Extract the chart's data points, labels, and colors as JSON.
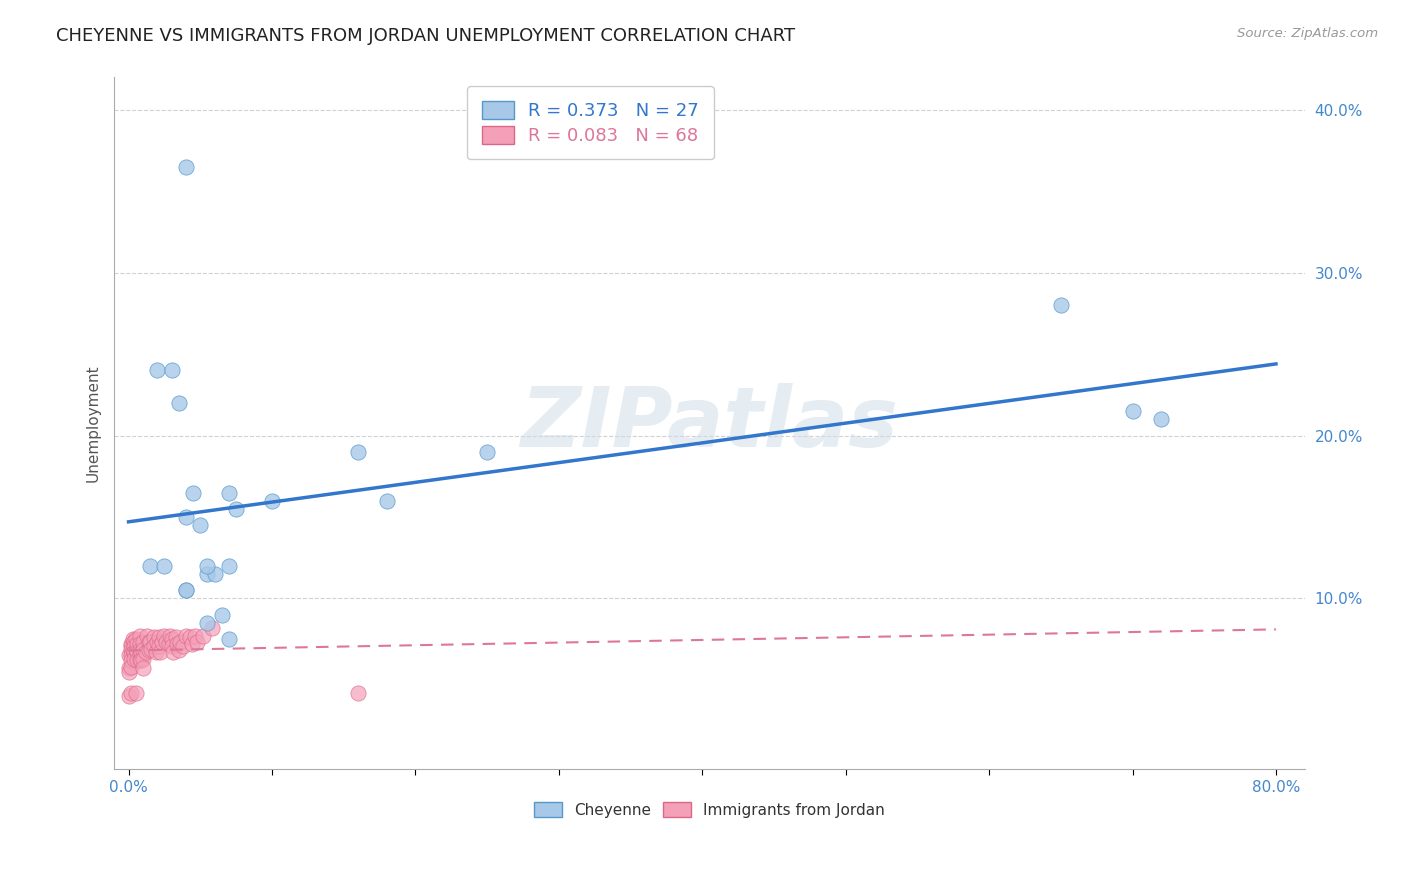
{
  "title": "CHEYENNE VS IMMIGRANTS FROM JORDAN UNEMPLOYMENT CORRELATION CHART",
  "source": "Source: ZipAtlas.com",
  "ylabel": "Unemployment",
  "xlim": [
    -0.01,
    0.82
  ],
  "ylim": [
    -0.005,
    0.42
  ],
  "xticks": [
    0.0,
    0.1,
    0.2,
    0.3,
    0.4,
    0.5,
    0.6,
    0.7,
    0.8
  ],
  "xticklabels": [
    "0.0%",
    "",
    "",
    "",
    "",
    "",
    "",
    "",
    "80.0%"
  ],
  "yticks": [
    0.1,
    0.2,
    0.3,
    0.4
  ],
  "yticklabels": [
    "10.0%",
    "20.0%",
    "30.0%",
    "40.0%"
  ],
  "cheyenne_color": "#a8c8e8",
  "jordan_color": "#f4a0b8",
  "cheyenne_edge_color": "#5599cc",
  "jordan_edge_color": "#dd6688",
  "cheyenne_line_color": "#3377cc",
  "jordan_line_color": "#dd7799",
  "legend_R1": "R = 0.373",
  "legend_N1": "N = 27",
  "legend_R2": "R = 0.083",
  "legend_N2": "N = 68",
  "cheyenne_x": [
    0.02,
    0.03,
    0.035,
    0.04,
    0.045,
    0.05,
    0.055,
    0.06,
    0.07,
    0.075,
    0.16,
    0.18,
    0.25,
    0.65,
    0.7,
    0.72,
    0.015,
    0.025,
    0.04,
    0.04,
    0.055,
    0.065,
    0.07,
    0.07,
    0.1,
    0.04,
    0.055
  ],
  "cheyenne_y": [
    0.24,
    0.24,
    0.22,
    0.15,
    0.165,
    0.145,
    0.115,
    0.115,
    0.165,
    0.155,
    0.19,
    0.16,
    0.19,
    0.28,
    0.215,
    0.21,
    0.12,
    0.12,
    0.105,
    0.105,
    0.085,
    0.09,
    0.075,
    0.12,
    0.16,
    0.365,
    0.12
  ],
  "jordan_x": [
    0.0,
    0.0,
    0.0,
    0.0,
    0.002,
    0.002,
    0.002,
    0.002,
    0.002,
    0.002,
    0.002,
    0.003,
    0.003,
    0.004,
    0.004,
    0.004,
    0.004,
    0.005,
    0.005,
    0.005,
    0.006,
    0.006,
    0.006,
    0.008,
    0.008,
    0.008,
    0.008,
    0.008,
    0.009,
    0.009,
    0.01,
    0.01,
    0.01,
    0.01,
    0.012,
    0.013,
    0.014,
    0.014,
    0.015,
    0.016,
    0.018,
    0.018,
    0.019,
    0.02,
    0.021,
    0.021,
    0.022,
    0.023,
    0.025,
    0.026,
    0.028,
    0.029,
    0.03,
    0.03,
    0.031,
    0.033,
    0.034,
    0.035,
    0.036,
    0.038,
    0.04,
    0.043,
    0.044,
    0.046,
    0.048,
    0.052,
    0.058,
    0.16
  ],
  "jordan_y": [
    0.065,
    0.057,
    0.055,
    0.04,
    0.072,
    0.071,
    0.068,
    0.065,
    0.062,
    0.058,
    0.042,
    0.075,
    0.068,
    0.074,
    0.071,
    0.067,
    0.063,
    0.075,
    0.068,
    0.042,
    0.072,
    0.067,
    0.062,
    0.077,
    0.072,
    0.068,
    0.066,
    0.062,
    0.067,
    0.062,
    0.073,
    0.068,
    0.063,
    0.057,
    0.067,
    0.077,
    0.073,
    0.068,
    0.073,
    0.069,
    0.076,
    0.071,
    0.067,
    0.073,
    0.076,
    0.071,
    0.067,
    0.073,
    0.077,
    0.073,
    0.072,
    0.077,
    0.075,
    0.071,
    0.067,
    0.076,
    0.072,
    0.068,
    0.073,
    0.071,
    0.077,
    0.076,
    0.072,
    0.077,
    0.073,
    0.077,
    0.082,
    0.042
  ],
  "background_color": "#ffffff",
  "grid_color": "#cccccc",
  "watermark": "ZIPatlas",
  "title_fontsize": 13,
  "axis_label_fontsize": 11,
  "tick_fontsize": 11,
  "tick_color": "#4488cc"
}
